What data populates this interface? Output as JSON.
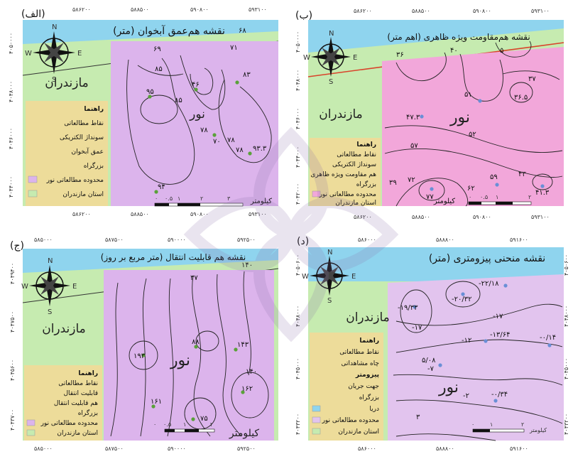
{
  "colors": {
    "background": "#ffffff",
    "sea": "#8fd4ee",
    "province": "#c6ebb0",
    "study_area_a": "#dcb4ec",
    "study_area_b": "#f2a7da",
    "study_area_c": "#dcb4ec",
    "study_area_d": "#e2c4ee",
    "legend_bg": "#eddc9a",
    "road": "#d9432b",
    "contour": "#222222",
    "point": "#5aa13a"
  },
  "panels": {
    "a": {
      "label": "(الف)",
      "title": "نقشه هم‌عمق آبخوان (متر)",
      "region": "مازندران",
      "area": "نور",
      "top_ticks": [
        "۵۸۶۲۰۰",
        "۵۸۸۵۰۰",
        "۵۹۰۸۰۰",
        "۵۹۳۱۰۰"
      ],
      "bottom_ticks": [
        "۵۸۶۲۰۰",
        "۵۸۸۵۰۰",
        "۵۹۰۸۰۰",
        "۵۹۳۱۰۰"
      ],
      "side_ticks": [
        "۴۰۵۰۰۰۰",
        "۴۰۴۸۰۰۰",
        "۴۰۴۶۰۰۰",
        "۴۰۴۴۰۰۰"
      ],
      "values": [
        "۶۸",
        "۶۹",
        "۷۱",
        "۸۳",
        "۸۵",
        "۸۵",
        "۴۶",
        "۹۵",
        "۷۸",
        "۷۸",
        "۷۸",
        "۷۰",
        "۹۳.۳",
        "۹۴"
      ],
      "legend": {
        "title": "راهنما",
        "items": [
          "نقاط مطالعاتی",
          "سونداژ الکتریکی",
          "عمق آبخوان",
          "بزرگراه",
          "محدوده مطالعاتی نور",
          "استان مازندران"
        ]
      },
      "scale": {
        "unit": "کیلومتر",
        "ticks": [
          "۰",
          "۰.۵",
          "۱",
          "۲",
          "۳"
        ]
      }
    },
    "b": {
      "label": "(ب)",
      "title": "نقشه هم‌مقاومت ویژه ظاهری (اهم متر)",
      "region": "مازندران",
      "area": "نور",
      "top_ticks": [
        "۵۸۶۲۰۰",
        "۵۸۸۵۰۰",
        "۵۹۰۸۰۰",
        "۵۹۳۱۰۰"
      ],
      "bottom_ticks": [
        "۵۸۶۲۰۰",
        "۵۸۸۵۰۰",
        "۵۹۰۸۰۰",
        "۵۹۳۱۰۰"
      ],
      "side_ticks": [
        "۴۰۵۰۰۰۰",
        "۴۰۴۸۰۰۰",
        "۴۰۴۶۰۰۰",
        "۴۰۴۴۰۰۰",
        "۴۰۴۲۰۰۰"
      ],
      "values": [
        "۳۶",
        "۴۰",
        "۵",
        "۳۷",
        "۳۶.۵",
        "۵۱",
        "۴۷.۳",
        "۵۲",
        "۵۷",
        "۵۹",
        "۴۳",
        "۴۱.۳",
        "۳۹",
        "۷۲",
        "۷۷",
        "۶۲"
      ],
      "legend": {
        "title": "راهنما",
        "items": [
          "نقاط مطالعاتی",
          "سونداژ الکتریکی",
          "هم مقاومت ویژه ظاهری",
          "بزرگراه",
          "محدوده مطالعاتی نور",
          "استان مازندران"
        ]
      },
      "scale": {
        "unit": "کیلومتر",
        "ticks": [
          "۰",
          "۰.۵",
          "۱",
          "۲"
        ]
      }
    },
    "c": {
      "label": "(ج)",
      "title": "نقشه هم قابلیت انتقال (متر مربع بر روز)",
      "region": "مازندران",
      "area": "نور",
      "top_ticks": [
        "۵۸۵۰۰۰",
        "۵۸۷۵۰۰",
        "۵۹۰۰۰۰",
        "۵۹۲۵۰۰"
      ],
      "bottom_ticks": [
        "۵۸۵۰۰۰",
        "۵۸۷۵۰۰",
        "۵۹۰۰۰۰",
        "۵۹۲۵۰۰"
      ],
      "side_ticks": [
        "۴۰۴۹۴۰۰",
        "۴۰۴۷۵۰۰",
        "۴۰۴۵۶۰۰",
        "۴۰۴۳۷۰۰"
      ],
      "values": [
        "۱۴۰",
        "۳۷",
        "۸۸",
        "۱۴۳",
        "۱۹۳",
        "۱۴۰",
        "۱۶۲",
        "۱۶۱",
        "۷۵"
      ],
      "legend": {
        "title": "راهنما",
        "items": [
          "نقاط مطالعاتی",
          "قابلیت انتقال",
          "هم قابلیت انتقال",
          "بزرگراه",
          "محدوده مطالعاتی نور",
          "استان مازندران"
        ]
      },
      "scale": {
        "unit": "کیلومتر",
        "ticks": [
          "۰",
          "۰.۵",
          "۱",
          "۲"
        ]
      }
    },
    "d": {
      "label": "(د)",
      "title": "نقشه منحنی پیزومتری (متر)",
      "region": "مازندران",
      "area": "نور",
      "top_ticks": [
        "۵۸۶۰۰۰",
        "۵۸۸۸۰۰",
        "۵۹۱۶۰۰"
      ],
      "bottom_ticks": [
        "۵۸۶۰۰۰",
        "۵۸۸۸۰۰",
        "۵۹۱۶۰۰"
      ],
      "side_ticks": [
        "۴۰۵۰۶۰۰",
        "۴۰۴۸۰۰۰",
        "۴۰۴۵۰۰۰",
        "۴۰۴۳۲۰۰"
      ],
      "values": [
        "-۲۲/۱۸",
        "-۲۰/۳۲",
        "-۱۹/۳۳",
        "-۱۷",
        "-۱۷",
        "-۱۲",
        "-۱۳/۶۴",
        "-۷",
        "-۰/۱۴",
        "۵/۰۸",
        "-۲",
        "-۰/۳۴",
        "۳"
      ],
      "legend": {
        "title": "راهنما",
        "items": [
          "نقاط مطالعاتی",
          "چاه مشاهداتی",
          "پیزومتر",
          "جهت جریان",
          "بزرگراه",
          "دریا",
          "محدوده مطالعاتی نور",
          "استان مازندران"
        ]
      },
      "scale": {
        "unit": "کیلومتر",
        "ticks": [
          "۰",
          "۱",
          "۲"
        ]
      }
    }
  }
}
